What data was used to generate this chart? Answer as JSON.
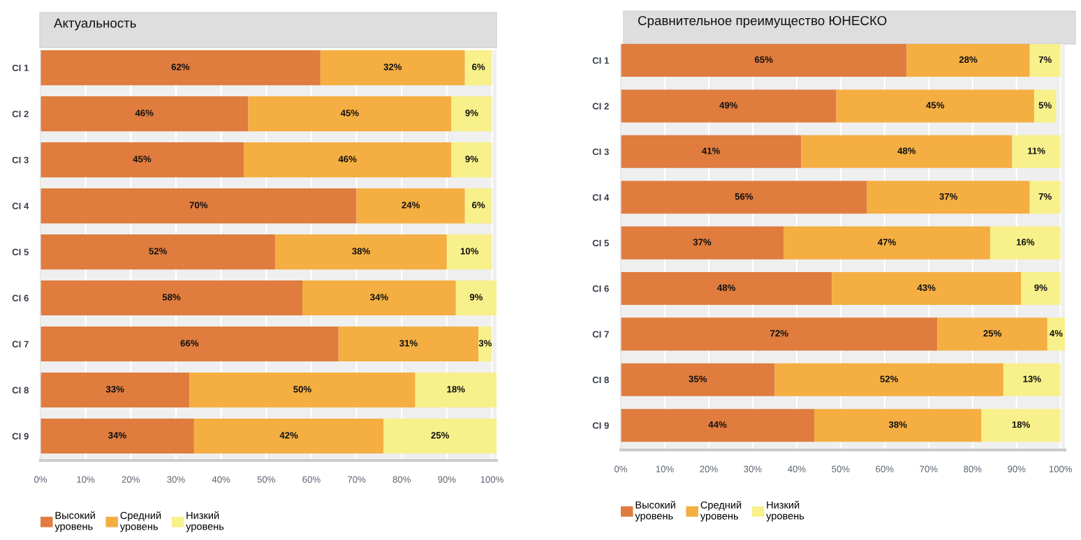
{
  "chart_data": [
    {
      "type": "bar",
      "orientation": "horizontal",
      "stacked": true,
      "title": "Актуальность",
      "categories": [
        "CI 1",
        "CI 2",
        "CI 3",
        "CI 4",
        "CI 5",
        "CI 6",
        "CI 7",
        "CI 8",
        "CI 9"
      ],
      "series": [
        {
          "name": "Высокий уровень",
          "color": "#df7c3e",
          "values": [
            62,
            46,
            45,
            70,
            52,
            58,
            66,
            33,
            34
          ],
          "value_labels": [
            "62%",
            "46%",
            "45%",
            "70%",
            "52%",
            "58%",
            "66%",
            "33%",
            "34%"
          ]
        },
        {
          "name": "Средний уровень",
          "color": "#f4ae42",
          "values": [
            32,
            45,
            46,
            24,
            38,
            34,
            31,
            50,
            42
          ],
          "value_labels": [
            "32%",
            "45%",
            "46%",
            "24%",
            "38%",
            "34%",
            "31%",
            "50%",
            "42%"
          ]
        },
        {
          "name": "Низкий уровень",
          "color": "#f8f08a",
          "values": [
            6,
            9,
            9,
            6,
            10,
            9,
            3,
            18,
            25
          ],
          "value_labels": [
            "6%",
            "9%",
            "9%",
            "6%",
            "10%",
            "9%",
            "3%",
            "18%",
            "25%"
          ]
        }
      ],
      "xlim": [
        0,
        101
      ],
      "xticks": [
        {
          "value": 0,
          "label": "0%"
        },
        {
          "value": 10,
          "label": "10%"
        },
        {
          "value": 20,
          "label": "20%"
        },
        {
          "value": 30,
          "label": "30%"
        },
        {
          "value": 40,
          "label": "40%"
        },
        {
          "value": 50,
          "label": "50%"
        },
        {
          "value": 60,
          "label": "60%"
        },
        {
          "value": 70,
          "label": "70%"
        },
        {
          "value": 80,
          "label": "80%"
        },
        {
          "value": 90,
          "label": "90%"
        },
        {
          "value": 100,
          "label": "100%"
        }
      ],
      "grid": "x",
      "legend": "bottom left"
    },
    {
      "type": "bar",
      "orientation": "horizontal",
      "stacked": true,
      "title": "Сравнительное преимущество ЮНЕСКО",
      "categories": [
        "CI 1",
        "CI 2",
        "CI 3",
        "CI 4",
        "CI 5",
        "CI 6",
        "CI 7",
        "CI 8",
        "CI 9"
      ],
      "series": [
        {
          "name": "Высокий уровень",
          "color": "#df7c3e",
          "values": [
            65,
            49,
            41,
            56,
            37,
            48,
            72,
            35,
            44
          ],
          "value_labels": [
            "65%",
            "49%",
            "41%",
            "56%",
            "37%",
            "48%",
            "72%",
            "35%",
            "44%"
          ]
        },
        {
          "name": "Средний уровень",
          "color": "#f4ae42",
          "values": [
            28,
            45,
            48,
            37,
            47,
            43,
            25,
            52,
            38
          ],
          "value_labels": [
            "28%",
            "45%",
            "48%",
            "37%",
            "47%",
            "43%",
            "25%",
            "52%",
            "38%"
          ]
        },
        {
          "name": "Низкий уровень",
          "color": "#f8f08a",
          "values": [
            7,
            5,
            11,
            7,
            16,
            9,
            4,
            13,
            18
          ],
          "value_labels": [
            "7%",
            "5%",
            "11%",
            "7%",
            "16%",
            "9%",
            "4%",
            "13%",
            "18%"
          ]
        }
      ],
      "xlim": [
        0,
        101
      ],
      "xticks": [
        {
          "value": 0,
          "label": "0%"
        },
        {
          "value": 10,
          "label": "10%"
        },
        {
          "value": 20,
          "label": "20%"
        },
        {
          "value": 30,
          "label": "30%"
        },
        {
          "value": 40,
          "label": "40%"
        },
        {
          "value": 50,
          "label": "50%"
        },
        {
          "value": 60,
          "label": "60%"
        },
        {
          "value": 70,
          "label": "70%"
        },
        {
          "value": 80,
          "label": "80%"
        },
        {
          "value": 90,
          "label": "90%"
        },
        {
          "value": 100,
          "label": "100%"
        }
      ],
      "grid": "x",
      "legend": "bottom left"
    }
  ]
}
